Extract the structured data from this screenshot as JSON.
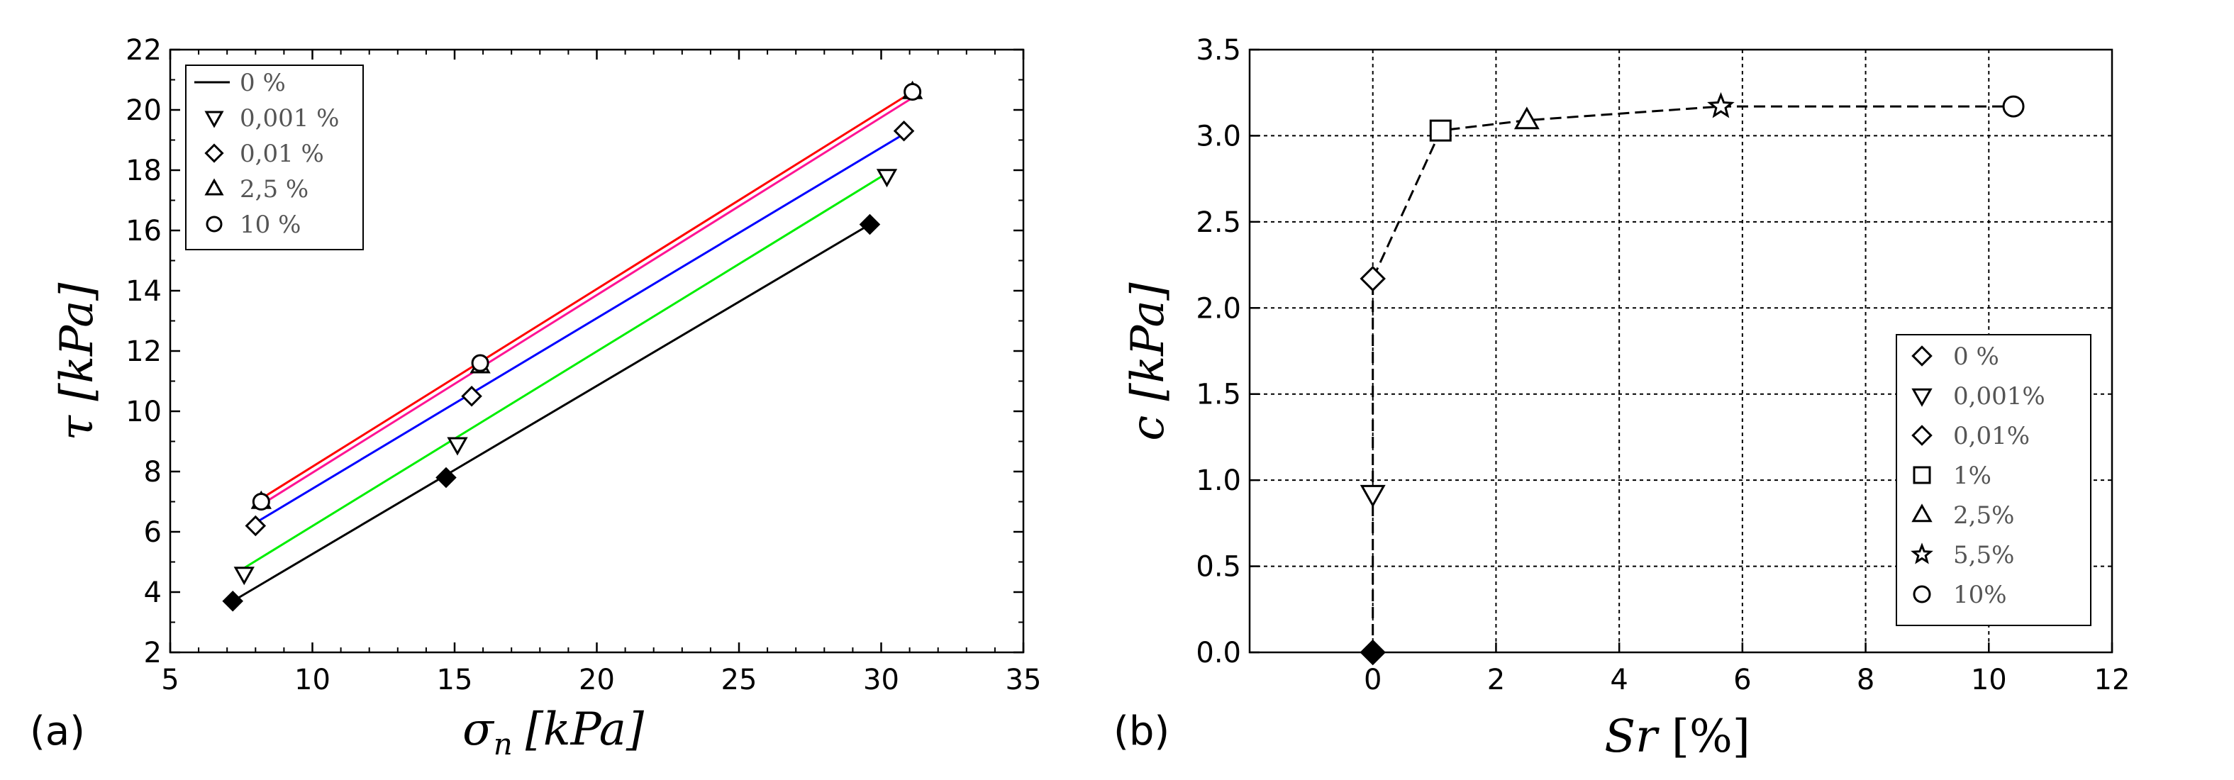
{
  "chart_data": [
    {
      "panel": "(a)",
      "type": "scatter",
      "xlabel": "σn [kPa]",
      "ylabel": "τ [kPa]",
      "xlim": [
        5,
        35
      ],
      "ylim": [
        2,
        22
      ],
      "xticks": [
        5,
        10,
        15,
        20,
        25,
        30,
        35
      ],
      "yticks": [
        2,
        4,
        6,
        8,
        10,
        12,
        14,
        16,
        18,
        20,
        22
      ],
      "grid": false,
      "legend_position": "top-left",
      "legend": [
        "0 %",
        "0,001 %",
        "0,01 %",
        "2,5 %",
        "10 %"
      ],
      "series": [
        {
          "name": "0 %",
          "marker": "diamond-filled",
          "color": "#000000",
          "x": [
            7.2,
            14.7,
            29.6
          ],
          "y": [
            3.7,
            7.8,
            16.2
          ],
          "fit": {
            "x": [
              7.2,
              29.6
            ],
            "y": [
              3.7,
              16.2
            ]
          }
        },
        {
          "name": "0,001 %",
          "marker": "triangle-down",
          "color": "#00ee00",
          "x": [
            7.6,
            15.1,
            30.2
          ],
          "y": [
            4.6,
            8.9,
            17.8
          ],
          "fit": {
            "x": [
              7.6,
              30.2
            ],
            "y": [
              4.8,
              17.9
            ]
          }
        },
        {
          "name": "0,01 %",
          "marker": "diamond",
          "color": "#0000ff",
          "x": [
            8.0,
            15.6,
            30.8
          ],
          "y": [
            6.2,
            10.5,
            19.3
          ],
          "fit": {
            "x": [
              8.0,
              30.8
            ],
            "y": [
              6.3,
              19.2
            ]
          }
        },
        {
          "name": "2,5 %",
          "marker": "triangle-up",
          "color": "#ff1493",
          "x": [
            8.2,
            15.9,
            31.1
          ],
          "y": [
            7.0,
            11.5,
            20.6
          ],
          "fit": {
            "x": [
              8.2,
              31.1
            ],
            "y": [
              6.9,
              20.4
            ]
          }
        },
        {
          "name": "10 %",
          "marker": "circle",
          "color": "#ff0000",
          "x": [
            8.2,
            15.9,
            31.1
          ],
          "y": [
            7.0,
            11.6,
            20.6
          ],
          "fit": {
            "x": [
              8.2,
              31.1
            ],
            "y": [
              7.1,
              20.6
            ]
          }
        }
      ]
    },
    {
      "panel": "(b)",
      "type": "scatter",
      "xlabel": "Sr [%]",
      "ylabel": "c [kPa]",
      "xlim": [
        -2,
        12
      ],
      "ylim": [
        0,
        3.5
      ],
      "xticks": [
        0,
        2,
        4,
        6,
        8,
        10,
        12
      ],
      "yticks": [
        "0.0",
        "0.5",
        "1.0",
        "1.5",
        "2.0",
        "2.5",
        "3.0",
        "3.5"
      ],
      "grid": true,
      "legend_position": "bottom-right",
      "legend": [
        "0 %",
        "0,001%",
        "0,01%",
        "1%",
        "2,5%",
        "5,5%",
        "10%"
      ],
      "series": [
        {
          "name": "0 %",
          "marker": "diamond-filled",
          "x": [
            0
          ],
          "y": [
            0.0
          ]
        },
        {
          "name": "0,001%",
          "marker": "triangle-down",
          "x": [
            0
          ],
          "y": [
            0.92
          ]
        },
        {
          "name": "0,01%",
          "marker": "diamond",
          "x": [
            0
          ],
          "y": [
            2.17
          ]
        },
        {
          "name": "1%",
          "marker": "square",
          "x": [
            1.1
          ],
          "y": [
            3.03
          ]
        },
        {
          "name": "2,5%",
          "marker": "triangle-up",
          "x": [
            2.5
          ],
          "y": [
            3.09
          ]
        },
        {
          "name": "5,5%",
          "marker": "star",
          "x": [
            5.65
          ],
          "y": [
            3.17
          ]
        },
        {
          "name": "10%",
          "marker": "circle",
          "x": [
            10.4
          ],
          "y": [
            3.17
          ]
        }
      ],
      "trend_line": {
        "style": "dashed",
        "x": [
          0,
          0,
          0,
          1.1,
          2.5,
          5.65,
          10.4
        ],
        "y": [
          0.0,
          0.92,
          2.17,
          3.03,
          3.09,
          3.17,
          3.17
        ]
      }
    }
  ]
}
